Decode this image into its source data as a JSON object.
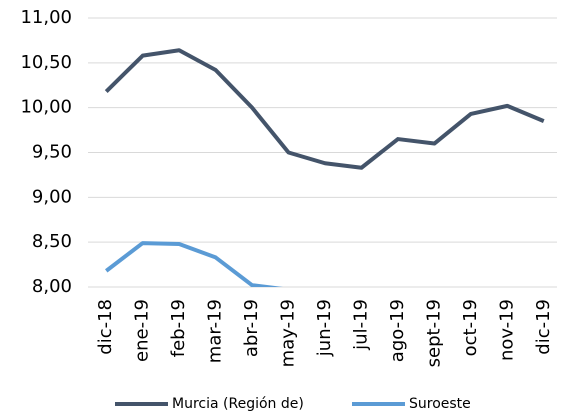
{
  "chart_data": {
    "type": "line",
    "categories": [
      "dic-18",
      "ene-19",
      "feb-19",
      "mar-19",
      "abr-19",
      "may-19",
      "jun-19",
      "jul-19",
      "ago-19",
      "sept-19",
      "oct-19",
      "nov-19",
      "dic-19"
    ],
    "series": [
      {
        "name": "Murcia (Región de)",
        "color": "#44546a",
        "values": [
          10.18,
          10.58,
          10.64,
          10.42,
          10.0,
          9.5,
          9.38,
          9.33,
          9.65,
          9.6,
          9.93,
          10.02,
          9.85
        ]
      },
      {
        "name": "Suroeste",
        "color": "#5b9bd5",
        "values": [
          8.18,
          8.49,
          8.48,
          8.33,
          8.02,
          7.97,
          null,
          null,
          null,
          null,
          null,
          null,
          null
        ]
      }
    ],
    "ylim": [
      8,
      11
    ],
    "yticks": [
      {
        "value": 8,
        "label": "8,00"
      },
      {
        "value": 8.5,
        "label": "8,50"
      },
      {
        "value": 9,
        "label": "9,00"
      },
      {
        "value": 9.5,
        "label": "9,50"
      },
      {
        "value": 10,
        "label": "10,00"
      },
      {
        "value": 10.5,
        "label": "10,50"
      },
      {
        "value": 11,
        "label": "11,00"
      }
    ],
    "grid": true,
    "legend": "bottom"
  }
}
